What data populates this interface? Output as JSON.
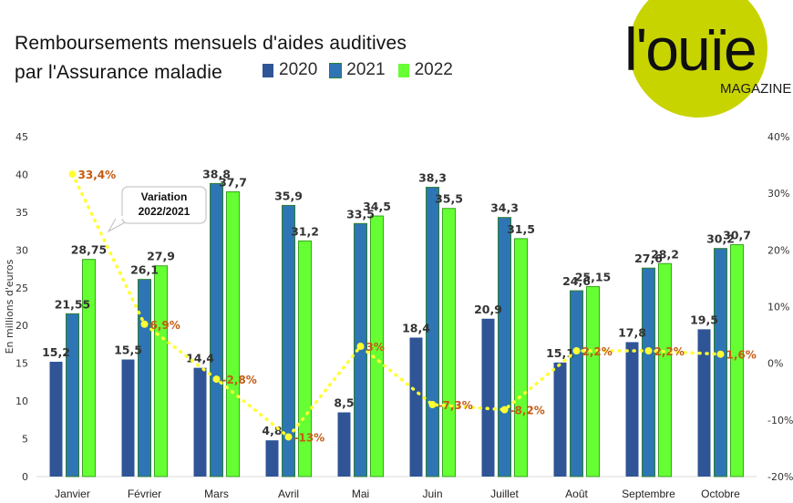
{
  "page": {
    "title_line1": "Remboursements mensuels d'aides auditives",
    "title_line2": "par l'Assurance maladie"
  },
  "logo": {
    "wordmark": "l'ouïe",
    "sub": "MAGAZINE"
  },
  "colors": {
    "s2020": "#2f5597",
    "s2021": "#2e75b6",
    "s2021_border": "#2e7d32",
    "s2022": "#66ff33",
    "s2022_border": "#3aa320",
    "variation_line": "#ffff33",
    "variation_label": "#c55a11",
    "logo_disc": "#c8d400",
    "axis_text": "#333333"
  },
  "chart_data": {
    "type": "bar",
    "title": "Remboursements mensuels d'aides auditives par l'Assurance maladie",
    "ylabel": "En millions d'euros",
    "ylim": [
      0,
      45
    ],
    "y_ticks": [
      0,
      5,
      10,
      15,
      20,
      25,
      30,
      35,
      40,
      45
    ],
    "y2lim": [
      -20,
      40
    ],
    "y2_ticks": [
      "-20%",
      "-10%",
      "0%",
      "10%",
      "20%",
      "30%",
      "40%"
    ],
    "categories": [
      "Janvier",
      "Février",
      "Mars",
      "Avril",
      "Mai",
      "Juin",
      "Juillet",
      "Août",
      "Septembre",
      "Octobre"
    ],
    "legend_position": "top",
    "series": [
      {
        "name": "2020",
        "values": [
          15.2,
          15.5,
          14.4,
          4.8,
          8.5,
          18.4,
          20.9,
          15.1,
          17.8,
          19.5
        ],
        "labels": [
          "15,2",
          "15,5",
          "14,4",
          "4,8",
          "8,5",
          "18,4",
          "20,9",
          "15,1",
          "17,8",
          "19,5"
        ]
      },
      {
        "name": "2021",
        "values": [
          21.55,
          26.1,
          38.8,
          35.9,
          33.5,
          38.3,
          34.3,
          24.6,
          27.6,
          30.2
        ],
        "labels": [
          "21,55",
          "26,1",
          "38,8",
          "35,9",
          "33,5",
          "38,3",
          "34,3",
          "24,6",
          "27,6",
          "30,2"
        ]
      },
      {
        "name": "2022",
        "values": [
          28.75,
          27.9,
          37.7,
          31.2,
          34.5,
          35.5,
          31.5,
          25.15,
          28.2,
          30.7
        ],
        "labels": [
          "28,75",
          "27,9",
          "37,7",
          "31,2",
          "34,5",
          "35,5",
          "31,5",
          "25,15",
          "28,2",
          "30,7"
        ]
      }
    ],
    "variation": {
      "callout": [
        "Variation",
        "2022/2021"
      ],
      "values": [
        33.4,
        6.9,
        -2.8,
        -13,
        3,
        -7.3,
        -8.2,
        2.2,
        2.2,
        1.6
      ],
      "labels": [
        "33,4%",
        "6,9%",
        "-2,8%",
        "-13%",
        "3%",
        "-7,3%",
        "-8,2%",
        "2,2%",
        "2,2%",
        "1,6%"
      ]
    }
  }
}
